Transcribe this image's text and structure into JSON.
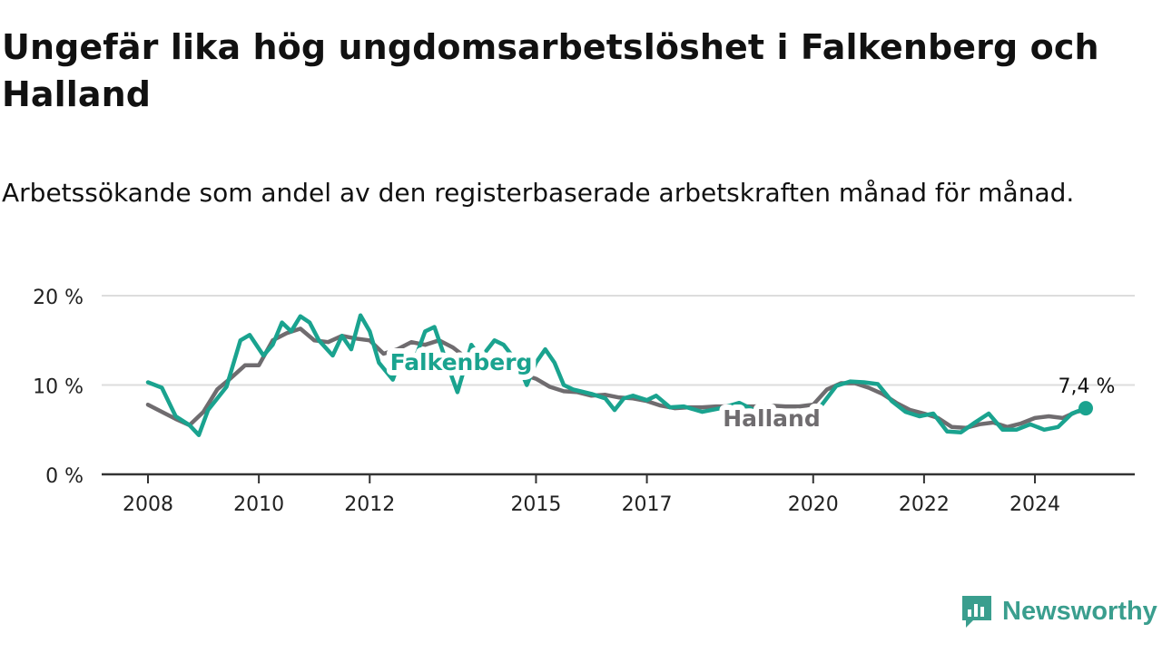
{
  "chart_data": {
    "type": "line",
    "title": "Ungefär lika hög ungdomsarbetslöshet i Falkenberg och Halland",
    "subtitle": "Arbetssökande som andel av den registerbaserade arbetskraften månad för månad.",
    "y_ticks": [
      "20 %",
      "10 %",
      "0 %"
    ],
    "ylim": [
      0,
      20
    ],
    "x_ticks": [
      "2008",
      "2010",
      "2012",
      "2015",
      "2017",
      "2020",
      "2022",
      "2024"
    ],
    "xlim": [
      "2008-01",
      "2024-12"
    ],
    "grid": "horizontal",
    "last_value_label": "7,4 %",
    "series": [
      {
        "name": "Falkenberg",
        "color": "#1aa38f",
        "points": [
          [
            "2008-01",
            10.3
          ],
          [
            "2008-04",
            9.7
          ],
          [
            "2008-07",
            6.5
          ],
          [
            "2008-10",
            5.5
          ],
          [
            "2008-12",
            4.4
          ],
          [
            "2009-02",
            7.2
          ],
          [
            "2009-06",
            9.8
          ],
          [
            "2009-09",
            15.0
          ],
          [
            "2009-11",
            15.6
          ],
          [
            "2010-02",
            13.3
          ],
          [
            "2010-04",
            14.5
          ],
          [
            "2010-06",
            17.0
          ],
          [
            "2010-08",
            16.0
          ],
          [
            "2010-10",
            17.7
          ],
          [
            "2010-12",
            17.0
          ],
          [
            "2011-02",
            15.0
          ],
          [
            "2011-05",
            13.3
          ],
          [
            "2011-07",
            15.5
          ],
          [
            "2011-09",
            14.0
          ],
          [
            "2011-11",
            17.8
          ],
          [
            "2012-01",
            16.0
          ],
          [
            "2012-03",
            12.5
          ],
          [
            "2012-06",
            10.6
          ],
          [
            "2012-08",
            13.5
          ],
          [
            "2012-11",
            13.2
          ],
          [
            "2013-01",
            16.0
          ],
          [
            "2013-03",
            16.5
          ],
          [
            "2013-06",
            12.0
          ],
          [
            "2013-08",
            9.2
          ],
          [
            "2013-11",
            14.5
          ],
          [
            "2014-01",
            13.0
          ],
          [
            "2014-04",
            15.0
          ],
          [
            "2014-06",
            14.5
          ],
          [
            "2014-09",
            12.5
          ],
          [
            "2014-11",
            10.0
          ],
          [
            "2015-01",
            12.5
          ],
          [
            "2015-03",
            14.0
          ],
          [
            "2015-05",
            12.5
          ],
          [
            "2015-07",
            10.0
          ],
          [
            "2015-09",
            9.5
          ],
          [
            "2016-01",
            9.0
          ],
          [
            "2016-04",
            8.5
          ],
          [
            "2016-06",
            7.2
          ],
          [
            "2016-08",
            8.5
          ],
          [
            "2016-10",
            8.8
          ],
          [
            "2017-01",
            8.3
          ],
          [
            "2017-03",
            8.8
          ],
          [
            "2017-06",
            7.5
          ],
          [
            "2017-09",
            7.6
          ],
          [
            "2018-01",
            7.0
          ],
          [
            "2018-05",
            7.4
          ],
          [
            "2018-09",
            8.0
          ],
          [
            "2019-01",
            7.0
          ],
          [
            "2019-05",
            6.0
          ],
          [
            "2019-09",
            5.3
          ],
          [
            "2019-11",
            5.6
          ],
          [
            "2020-02",
            7.2
          ],
          [
            "2020-06",
            9.9
          ],
          [
            "2020-09",
            10.4
          ],
          [
            "2020-12",
            10.3
          ],
          [
            "2021-03",
            10.1
          ],
          [
            "2021-06",
            8.2
          ],
          [
            "2021-09",
            7.0
          ],
          [
            "2021-12",
            6.5
          ],
          [
            "2022-03",
            6.8
          ],
          [
            "2022-06",
            4.8
          ],
          [
            "2022-09",
            4.7
          ],
          [
            "2022-12",
            5.8
          ],
          [
            "2023-03",
            6.8
          ],
          [
            "2023-06",
            5.0
          ],
          [
            "2023-09",
            5.0
          ],
          [
            "2023-12",
            5.6
          ],
          [
            "2024-03",
            5.0
          ],
          [
            "2024-06",
            5.3
          ],
          [
            "2024-09",
            6.8
          ],
          [
            "2024-12",
            7.4
          ]
        ]
      },
      {
        "name": "Halland",
        "color": "#6f6c6f",
        "points": [
          [
            "2008-01",
            7.8
          ],
          [
            "2008-04",
            7.0
          ],
          [
            "2008-07",
            6.2
          ],
          [
            "2008-10",
            5.5
          ],
          [
            "2009-01",
            7.0
          ],
          [
            "2009-04",
            9.5
          ],
          [
            "2009-07",
            10.8
          ],
          [
            "2009-10",
            12.2
          ],
          [
            "2010-01",
            12.2
          ],
          [
            "2010-04",
            15.0
          ],
          [
            "2010-07",
            15.8
          ],
          [
            "2010-10",
            16.3
          ],
          [
            "2011-01",
            15.0
          ],
          [
            "2011-04",
            14.8
          ],
          [
            "2011-07",
            15.5
          ],
          [
            "2011-10",
            15.2
          ],
          [
            "2012-01",
            15.0
          ],
          [
            "2012-04",
            13.5
          ],
          [
            "2012-07",
            14.0
          ],
          [
            "2012-10",
            14.8
          ],
          [
            "2013-01",
            14.5
          ],
          [
            "2013-04",
            15.0
          ],
          [
            "2013-07",
            14.2
          ],
          [
            "2013-10",
            13.0
          ],
          [
            "2014-01",
            12.8
          ],
          [
            "2014-04",
            12.5
          ],
          [
            "2014-07",
            12.0
          ],
          [
            "2014-10",
            11.2
          ],
          [
            "2015-01",
            10.7
          ],
          [
            "2015-04",
            9.8
          ],
          [
            "2015-07",
            9.3
          ],
          [
            "2015-10",
            9.2
          ],
          [
            "2016-01",
            8.8
          ],
          [
            "2016-04",
            8.9
          ],
          [
            "2016-07",
            8.6
          ],
          [
            "2016-10",
            8.5
          ],
          [
            "2017-01",
            8.2
          ],
          [
            "2017-04",
            7.7
          ],
          [
            "2017-07",
            7.4
          ],
          [
            "2017-10",
            7.5
          ],
          [
            "2018-01",
            7.5
          ],
          [
            "2018-04",
            7.6
          ],
          [
            "2018-07",
            7.6
          ],
          [
            "2018-10",
            7.6
          ],
          [
            "2019-01",
            7.6
          ],
          [
            "2019-04",
            7.7
          ],
          [
            "2019-07",
            7.6
          ],
          [
            "2019-10",
            7.6
          ],
          [
            "2020-01",
            7.8
          ],
          [
            "2020-04",
            9.5
          ],
          [
            "2020-07",
            10.2
          ],
          [
            "2020-10",
            10.2
          ],
          [
            "2021-01",
            9.7
          ],
          [
            "2021-04",
            9.0
          ],
          [
            "2021-07",
            8.0
          ],
          [
            "2021-10",
            7.2
          ],
          [
            "2022-01",
            6.8
          ],
          [
            "2022-04",
            6.3
          ],
          [
            "2022-07",
            5.3
          ],
          [
            "2022-10",
            5.2
          ],
          [
            "2023-01",
            5.6
          ],
          [
            "2023-04",
            5.8
          ],
          [
            "2023-07",
            5.3
          ],
          [
            "2023-10",
            5.7
          ],
          [
            "2024-01",
            6.3
          ],
          [
            "2024-04",
            6.5
          ],
          [
            "2024-07",
            6.3
          ],
          [
            "2024-10",
            7.0
          ],
          [
            "2024-12",
            7.2
          ]
        ]
      }
    ]
  },
  "brand": {
    "name": "Newsworthy",
    "color": "#3a9e8e"
  }
}
